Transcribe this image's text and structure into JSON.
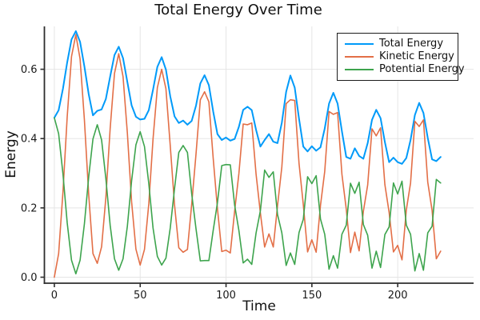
{
  "title": "Total Energy Over Time",
  "colors": {
    "background": "#ffffff",
    "grid": "#e5e5e5",
    "axis": "#2e2e2e",
    "text": "#191919"
  },
  "chart_data": {
    "type": "line",
    "title": "Total Energy Over Time",
    "xlabel": "Time",
    "ylabel": "Energy",
    "x_start": 0,
    "x_step": 2.5,
    "xlim": [
      -5.8,
      244.2
    ],
    "ylim": [
      -0.0173,
      0.7237
    ],
    "xticks": [
      0,
      50,
      100,
      150,
      200
    ],
    "xtick_labels": [
      "0",
      "50",
      "100",
      "150",
      "200"
    ],
    "yticks": [
      0.0,
      0.2,
      0.4,
      0.6
    ],
    "ytick_labels": [
      "0.0",
      "0.2",
      "0.4",
      "0.6"
    ],
    "grid": true,
    "legend_position": "top-right",
    "series": [
      {
        "name": "Total Energy",
        "color": "#009af9",
        "width": 2.0,
        "values": [
          0.46,
          0.482,
          0.544,
          0.62,
          0.686,
          0.71,
          0.679,
          0.608,
          0.528,
          0.467,
          0.48,
          0.484,
          0.514,
          0.579,
          0.641,
          0.665,
          0.632,
          0.563,
          0.496,
          0.463,
          0.455,
          0.457,
          0.482,
          0.541,
          0.607,
          0.635,
          0.599,
          0.522,
          0.464,
          0.445,
          0.452,
          0.44,
          0.451,
          0.495,
          0.559,
          0.583,
          0.554,
          0.478,
          0.413,
          0.396,
          0.403,
          0.394,
          0.399,
          0.434,
          0.483,
          0.492,
          0.482,
          0.425,
          0.377,
          0.396,
          0.413,
          0.391,
          0.387,
          0.446,
          0.535,
          0.582,
          0.547,
          0.457,
          0.377,
          0.363,
          0.378,
          0.365,
          0.375,
          0.429,
          0.501,
          0.532,
          0.501,
          0.421,
          0.347,
          0.342,
          0.372,
          0.35,
          0.342,
          0.387,
          0.454,
          0.483,
          0.459,
          0.39,
          0.332,
          0.345,
          0.332,
          0.327,
          0.344,
          0.396,
          0.468,
          0.503,
          0.474,
          0.402,
          0.34,
          0.335,
          0.347
        ]
      },
      {
        "name": "Kinetic Energy",
        "color": "#e36f47",
        "width": 1.6,
        "values": [
          0.0,
          0.068,
          0.246,
          0.463,
          0.637,
          0.7,
          0.63,
          0.454,
          0.238,
          0.068,
          0.04,
          0.088,
          0.229,
          0.429,
          0.588,
          0.645,
          0.579,
          0.416,
          0.218,
          0.081,
          0.035,
          0.08,
          0.212,
          0.399,
          0.547,
          0.6,
          0.544,
          0.38,
          0.208,
          0.085,
          0.072,
          0.08,
          0.21,
          0.355,
          0.512,
          0.535,
          0.506,
          0.343,
          0.198,
          0.074,
          0.078,
          0.07,
          0.191,
          0.299,
          0.442,
          0.44,
          0.445,
          0.297,
          0.185,
          0.087,
          0.125,
          0.087,
          0.206,
          0.318,
          0.501,
          0.512,
          0.51,
          0.328,
          0.21,
          0.073,
          0.108,
          0.072,
          0.207,
          0.305,
          0.478,
          0.47,
          0.475,
          0.297,
          0.197,
          0.071,
          0.13,
          0.076,
          0.19,
          0.266,
          0.428,
          0.408,
          0.431,
          0.267,
          0.187,
          0.073,
          0.092,
          0.05,
          0.194,
          0.272,
          0.45,
          0.435,
          0.454,
          0.274,
          0.193,
          0.053,
          0.075
        ]
      },
      {
        "name": "Potential Energy",
        "color": "#3da44d",
        "width": 1.6,
        "values": [
          0.46,
          0.414,
          0.298,
          0.157,
          0.049,
          0.01,
          0.049,
          0.154,
          0.29,
          0.399,
          0.44,
          0.396,
          0.285,
          0.15,
          0.053,
          0.02,
          0.053,
          0.147,
          0.278,
          0.382,
          0.42,
          0.377,
          0.27,
          0.142,
          0.06,
          0.035,
          0.055,
          0.142,
          0.256,
          0.36,
          0.38,
          0.36,
          0.241,
          0.14,
          0.047,
          0.048,
          0.048,
          0.135,
          0.215,
          0.322,
          0.325,
          0.324,
          0.208,
          0.135,
          0.041,
          0.052,
          0.037,
          0.128,
          0.192,
          0.309,
          0.288,
          0.304,
          0.181,
          0.128,
          0.034,
          0.07,
          0.037,
          0.129,
          0.167,
          0.29,
          0.27,
          0.293,
          0.168,
          0.124,
          0.023,
          0.062,
          0.026,
          0.124,
          0.15,
          0.271,
          0.242,
          0.274,
          0.152,
          0.121,
          0.026,
          0.075,
          0.028,
          0.123,
          0.145,
          0.272,
          0.24,
          0.277,
          0.15,
          0.124,
          0.018,
          0.068,
          0.02,
          0.128,
          0.147,
          0.282,
          0.272
        ]
      }
    ]
  }
}
